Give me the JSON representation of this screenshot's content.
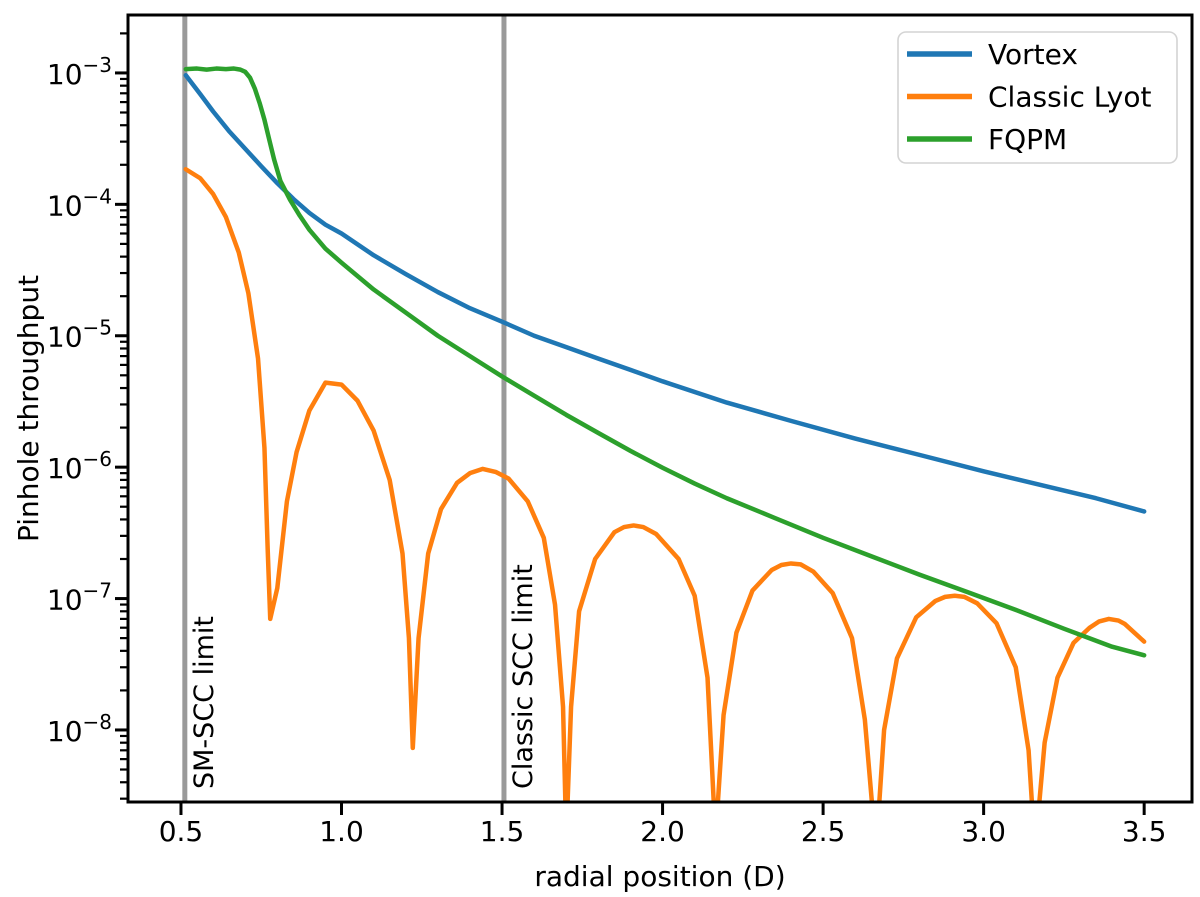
{
  "figure": {
    "background": "#ffffff",
    "spine_color": "#000000",
    "text_color": "#000000"
  },
  "chart_data": {
    "type": "line",
    "title": "",
    "xlabel": "radial position (D)",
    "ylabel": "Pinhole throughput",
    "xscale": "linear",
    "yscale": "log",
    "xlim": [
      0.335,
      3.649
    ],
    "ylim": [
      2.83e-09,
      0.00276
    ],
    "grid": false,
    "legend_position": "upper right",
    "x_ticks": [
      0.5,
      1.0,
      1.5,
      2.0,
      2.5,
      3.0,
      3.5
    ],
    "x_tick_labels": [
      "0.5",
      "1.0",
      "1.5",
      "2.0",
      "2.5",
      "3.0",
      "3.5"
    ],
    "y_tick_exponents": [
      -3,
      -4,
      -5,
      -6,
      -7,
      -8
    ],
    "series": [
      {
        "name": "Vortex",
        "slug": "vortex",
        "color": "#1f77b4",
        "points": [
          [
            0.515,
            0.00096
          ],
          [
            0.56,
            0.00069
          ],
          [
            0.6,
            0.00051
          ],
          [
            0.65,
            0.00036
          ],
          [
            0.7,
            0.000265
          ],
          [
            0.75,
            0.000195
          ],
          [
            0.8,
            0.000145
          ],
          [
            0.85,
            0.00011
          ],
          [
            0.9,
            8.6e-05
          ],
          [
            0.95,
            7e-05
          ],
          [
            1.0,
            6e-05
          ],
          [
            1.1,
            4.1e-05
          ],
          [
            1.2,
            2.95e-05
          ],
          [
            1.3,
            2.15e-05
          ],
          [
            1.4,
            1.62e-05
          ],
          [
            1.5,
            1.28e-05
          ],
          [
            1.6,
            1e-05
          ],
          [
            1.7,
            8.2e-06
          ],
          [
            1.8,
            6.7e-06
          ],
          [
            1.9,
            5.5e-06
          ],
          [
            2.0,
            4.5e-06
          ],
          [
            2.2,
            3.1e-06
          ],
          [
            2.4,
            2.25e-06
          ],
          [
            2.6,
            1.65e-06
          ],
          [
            2.8,
            1.24e-06
          ],
          [
            3.0,
            9.3e-07
          ],
          [
            3.2,
            7.1e-07
          ],
          [
            3.35,
            5.8e-07
          ],
          [
            3.5,
            4.6e-07
          ]
        ]
      },
      {
        "name": "Classic Lyot",
        "slug": "classic-lyot",
        "color": "#ff7f0e",
        "points": [
          [
            0.515,
            0.000185
          ],
          [
            0.56,
            0.000158
          ],
          [
            0.6,
            0.00012
          ],
          [
            0.64,
            8e-05
          ],
          [
            0.68,
            4.3e-05
          ],
          [
            0.71,
            2.1e-05
          ],
          [
            0.74,
            6.7e-06
          ],
          [
            0.76,
            1.4e-06
          ],
          [
            0.77,
            2.4e-07
          ],
          [
            0.778,
            7e-08
          ],
          [
            0.8,
            1.2e-07
          ],
          [
            0.83,
            5.5e-07
          ],
          [
            0.86,
            1.3e-06
          ],
          [
            0.9,
            2.7e-06
          ],
          [
            0.95,
            4.4e-06
          ],
          [
            1.0,
            4.25e-06
          ],
          [
            1.05,
            3.2e-06
          ],
          [
            1.1,
            1.9e-06
          ],
          [
            1.15,
            8e-07
          ],
          [
            1.19,
            2.2e-07
          ],
          [
            1.21,
            5e-08
          ],
          [
            1.222,
            7.3e-09
          ],
          [
            1.24,
            5e-08
          ],
          [
            1.27,
            2.2e-07
          ],
          [
            1.31,
            4.8e-07
          ],
          [
            1.36,
            7.6e-07
          ],
          [
            1.4,
            9e-07
          ],
          [
            1.44,
            9.7e-07
          ],
          [
            1.48,
            9.2e-07
          ],
          [
            1.52,
            8.2e-07
          ],
          [
            1.58,
            5.5e-07
          ],
          [
            1.63,
            2.9e-07
          ],
          [
            1.665,
            9e-08
          ],
          [
            1.69,
            1.5e-08
          ],
          [
            1.7,
            1.5e-09
          ],
          [
            1.715,
            1.5e-08
          ],
          [
            1.74,
            8e-08
          ],
          [
            1.79,
            2e-07
          ],
          [
            1.85,
            3.2e-07
          ],
          [
            1.88,
            3.5e-07
          ],
          [
            1.91,
            3.6e-07
          ],
          [
            1.94,
            3.5e-07
          ],
          [
            1.98,
            3.1e-07
          ],
          [
            2.05,
            2e-07
          ],
          [
            2.1,
            1.05e-07
          ],
          [
            2.14,
            2.5e-08
          ],
          [
            2.165,
            1.5e-09
          ],
          [
            2.19,
            1.3e-08
          ],
          [
            2.23,
            5.5e-08
          ],
          [
            2.28,
            1.15e-07
          ],
          [
            2.34,
            1.65e-07
          ],
          [
            2.37,
            1.8e-07
          ],
          [
            2.4,
            1.85e-07
          ],
          [
            2.43,
            1.82e-07
          ],
          [
            2.47,
            1.6e-07
          ],
          [
            2.53,
            1.1e-07
          ],
          [
            2.59,
            5e-08
          ],
          [
            2.63,
            1.2e-08
          ],
          [
            2.665,
            1.2e-09
          ],
          [
            2.69,
            1e-08
          ],
          [
            2.73,
            3.5e-08
          ],
          [
            2.79,
            7.2e-08
          ],
          [
            2.85,
            9.6e-08
          ],
          [
            2.88,
            1.03e-07
          ],
          [
            2.91,
            1.05e-07
          ],
          [
            2.94,
            1.03e-07
          ],
          [
            2.98,
            9.2e-08
          ],
          [
            3.04,
            6.5e-08
          ],
          [
            3.1,
            3e-08
          ],
          [
            3.14,
            7e-09
          ],
          [
            3.16,
            1.2e-09
          ],
          [
            3.19,
            8e-09
          ],
          [
            3.23,
            2.5e-08
          ],
          [
            3.28,
            4.6e-08
          ],
          [
            3.33,
            6e-08
          ],
          [
            3.36,
            6.7e-08
          ],
          [
            3.39,
            7e-08
          ],
          [
            3.42,
            6.8e-08
          ],
          [
            3.44,
            6.4e-08
          ],
          [
            3.5,
            4.7e-08
          ]
        ]
      },
      {
        "name": "FQPM",
        "slug": "fqpm",
        "color": "#2ca02c",
        "points": [
          [
            0.515,
            0.00107
          ],
          [
            0.55,
            0.00108
          ],
          [
            0.58,
            0.00106
          ],
          [
            0.61,
            0.00108
          ],
          [
            0.64,
            0.00107
          ],
          [
            0.665,
            0.00108
          ],
          [
            0.685,
            0.00106
          ],
          [
            0.7,
            0.00102
          ],
          [
            0.715,
            0.00092
          ],
          [
            0.73,
            0.00076
          ],
          [
            0.745,
            0.00059
          ],
          [
            0.76,
            0.00044
          ],
          [
            0.775,
            0.00031
          ],
          [
            0.79,
            0.00022
          ],
          [
            0.81,
            0.00015
          ],
          [
            0.84,
            0.000108
          ],
          [
            0.87,
            8.2e-05
          ],
          [
            0.9,
            6.4e-05
          ],
          [
            0.95,
            4.6e-05
          ],
          [
            1.0,
            3.6e-05
          ],
          [
            1.1,
            2.25e-05
          ],
          [
            1.2,
            1.5e-05
          ],
          [
            1.3,
            1e-05
          ],
          [
            1.4,
            7e-06
          ],
          [
            1.5,
            4.9e-06
          ],
          [
            1.6,
            3.5e-06
          ],
          [
            1.7,
            2.5e-06
          ],
          [
            1.8,
            1.82e-06
          ],
          [
            1.9,
            1.33e-06
          ],
          [
            2.0,
            9.9e-07
          ],
          [
            2.1,
            7.5e-07
          ],
          [
            2.2,
            5.8e-07
          ],
          [
            2.35,
            4.1e-07
          ],
          [
            2.5,
            2.9e-07
          ],
          [
            2.65,
            2.1e-07
          ],
          [
            2.8,
            1.52e-07
          ],
          [
            2.95,
            1.12e-07
          ],
          [
            3.1,
            8.2e-08
          ],
          [
            3.25,
            5.9e-08
          ],
          [
            3.4,
            4.3e-08
          ],
          [
            3.5,
            3.7e-08
          ]
        ]
      }
    ],
    "vlines": [
      {
        "x": 0.512,
        "label": "SM-SCC limit",
        "slug": "sm-scc-limit",
        "color": "#9a9a9a"
      },
      {
        "x": 1.506,
        "label": "Classic SCC limit",
        "slug": "classic-scc-limit",
        "color": "#9a9a9a"
      }
    ]
  }
}
